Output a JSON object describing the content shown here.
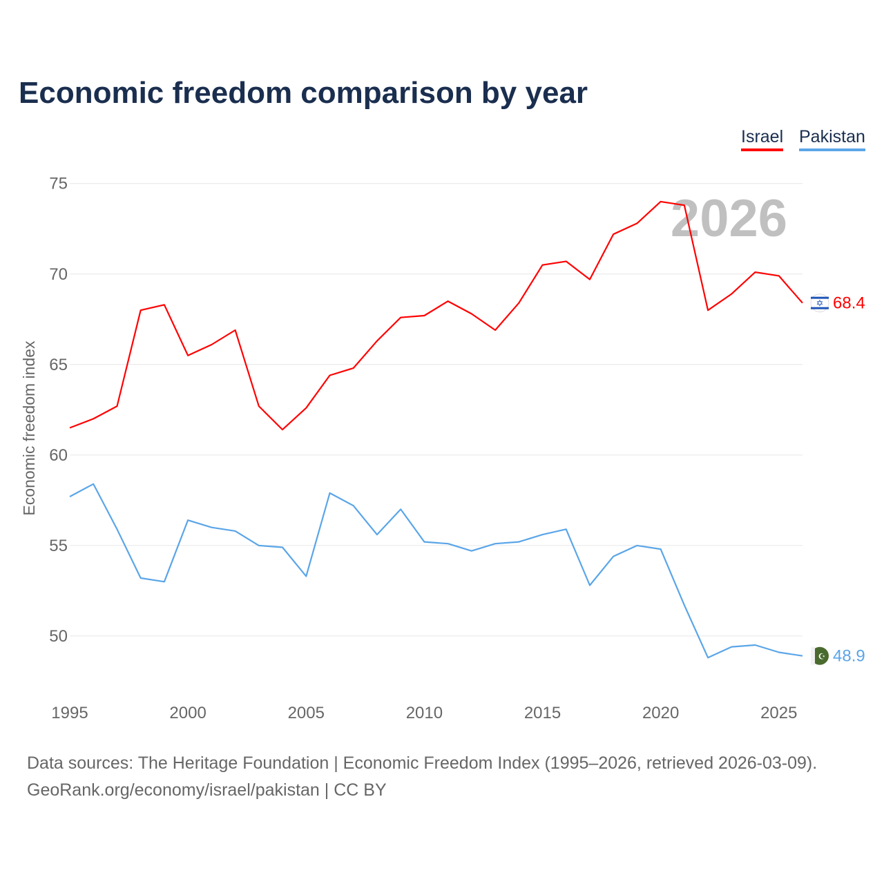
{
  "title": "Economic freedom comparison by year",
  "source_line1": "Data sources: The Heritage Foundation | Economic Freedom Index (1995–2026, retrieved 2026-03-09).",
  "source_line2": "GeoRank.org/economy/israel/pakistan | CC BY",
  "chart_data": {
    "type": "line",
    "title": "Economic freedom comparison by year",
    "xlabel": "",
    "ylabel": "Economic freedom index",
    "year_watermark": "2026",
    "xlim": [
      1995,
      2026
    ],
    "ylim": [
      46.6,
      75.6
    ],
    "xticks": [
      1995,
      2000,
      2005,
      2010,
      2015,
      2020,
      2025
    ],
    "yticks": [
      50,
      55,
      60,
      65,
      70,
      75
    ],
    "grid": true,
    "legend": "top-right",
    "x": [
      1995,
      1996,
      1997,
      1998,
      1999,
      2000,
      2001,
      2002,
      2003,
      2004,
      2005,
      2006,
      2007,
      2008,
      2009,
      2010,
      2011,
      2012,
      2013,
      2014,
      2015,
      2016,
      2017,
      2018,
      2019,
      2020,
      2021,
      2022,
      2023,
      2024,
      2025,
      2026
    ],
    "series": [
      {
        "name": "Israel",
        "color": "#ff0000",
        "end_label": "68.4",
        "values": [
          61.5,
          62.0,
          62.7,
          68.0,
          68.3,
          65.5,
          66.1,
          66.9,
          62.7,
          61.4,
          62.6,
          64.4,
          64.8,
          66.3,
          67.6,
          67.7,
          68.5,
          67.8,
          66.9,
          68.4,
          70.5,
          70.7,
          69.7,
          72.2,
          72.8,
          74.0,
          73.8,
          68.0,
          68.9,
          70.1,
          69.9,
          68.4
        ]
      },
      {
        "name": "Pakistan",
        "color": "#5aa5e8",
        "end_label": "48.9",
        "values": [
          57.7,
          58.4,
          55.9,
          53.2,
          53.0,
          56.4,
          56.0,
          55.8,
          55.0,
          54.9,
          53.3,
          57.9,
          57.2,
          55.6,
          57.0,
          55.2,
          55.1,
          54.7,
          55.1,
          55.2,
          55.6,
          55.9,
          52.8,
          54.4,
          55.0,
          54.8,
          51.7,
          48.8,
          49.4,
          49.5,
          49.1,
          48.9
        ]
      }
    ]
  }
}
